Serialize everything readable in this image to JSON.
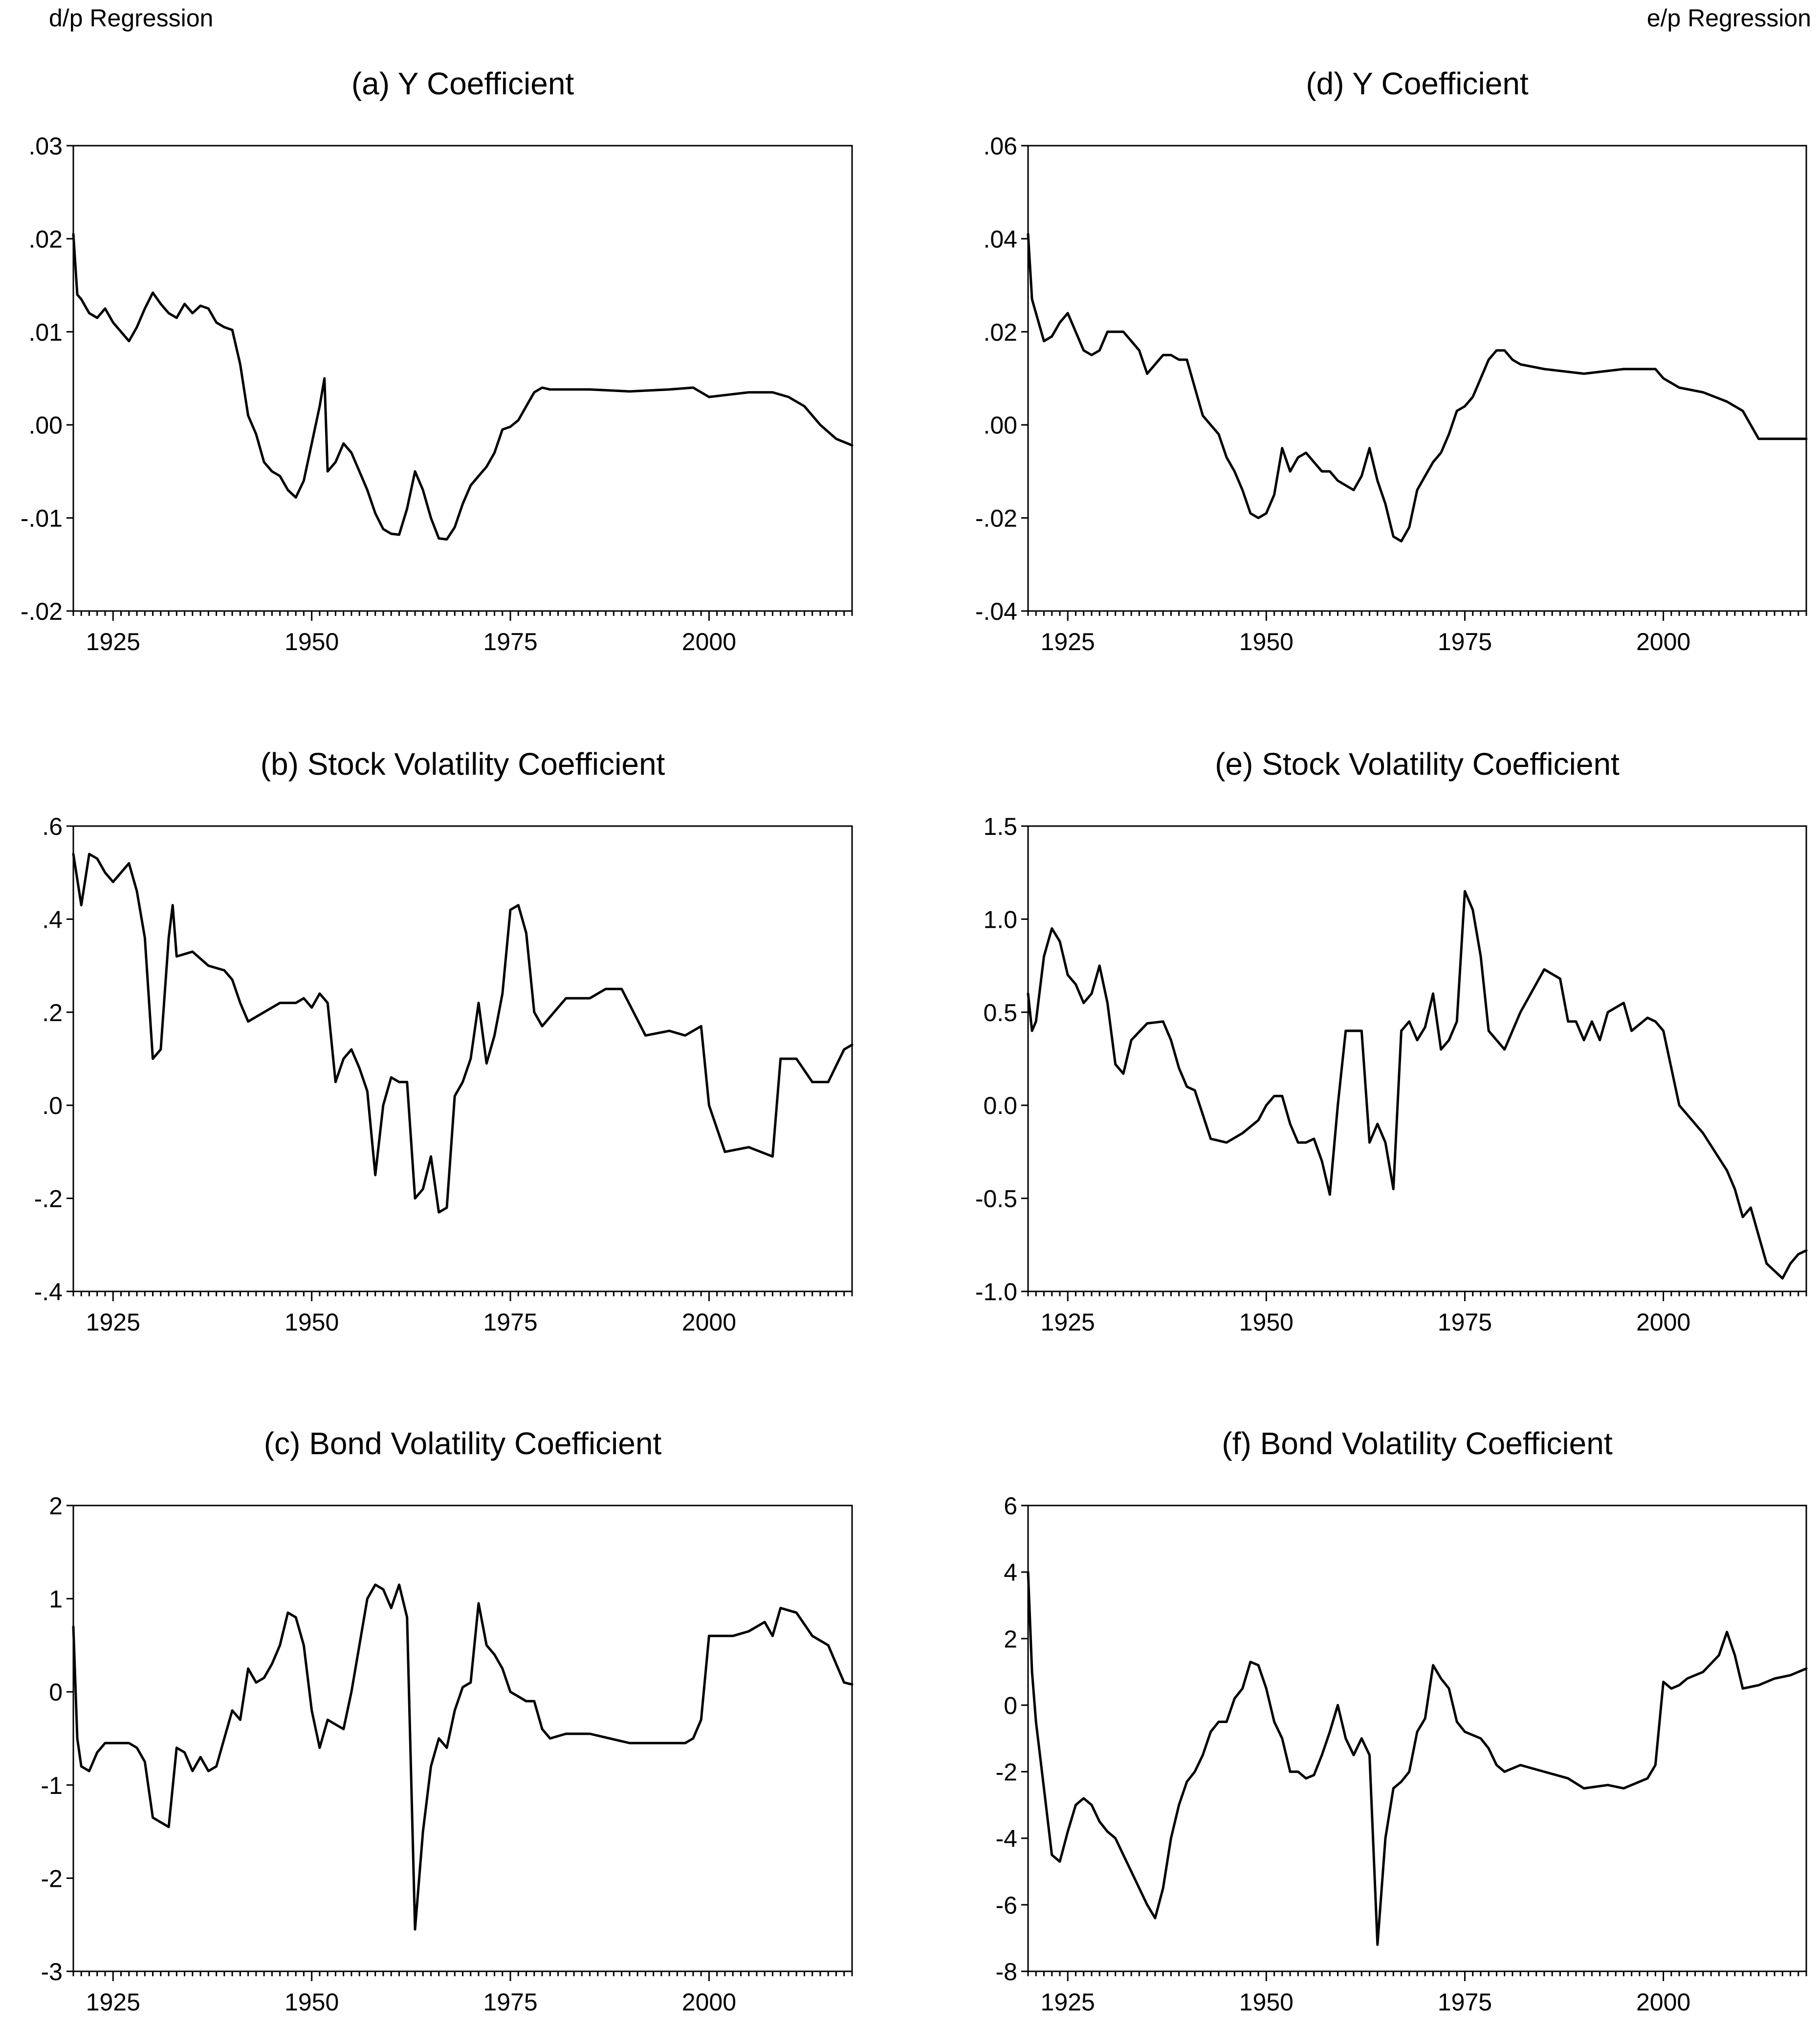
{
  "header": {
    "left": "d/p Regression",
    "right": "e/p Regression"
  },
  "colors": {
    "line": "#000000",
    "frame": "#000000",
    "background": "#ffffff"
  },
  "chart_data": [
    {
      "id": "a",
      "type": "line",
      "title": "(a)  Y  Coefficient",
      "xlabel": "",
      "ylabel": "",
      "xlim": [
        1920,
        2018
      ],
      "ylim": [
        -0.02,
        0.03
      ],
      "yticks": [
        -0.02,
        -0.01,
        0.0,
        0.01,
        0.02,
        0.03
      ],
      "ytick_labels": [
        "-.02",
        "-.01",
        ".00",
        ".01",
        ".02",
        ".03"
      ],
      "xticks": [
        1925,
        1950,
        1975,
        2000
      ],
      "xtick_labels": [
        "1925",
        "1950",
        "1975",
        "2000"
      ],
      "x": [
        1920,
        1920.5,
        1921,
        1922,
        1923,
        1924,
        1925,
        1927,
        1928,
        1929,
        1930,
        1931,
        1932,
        1933,
        1934,
        1935,
        1936,
        1937,
        1938,
        1939,
        1940,
        1941,
        1942,
        1943,
        1944,
        1945,
        1946,
        1947,
        1948,
        1949,
        1950,
        1951,
        1951.6,
        1952,
        1953,
        1954,
        1955,
        1956,
        1957,
        1958,
        1959,
        1960,
        1961,
        1962,
        1963,
        1964,
        1965,
        1966,
        1967,
        1968,
        1969,
        1970,
        1971,
        1972,
        1973,
        1974,
        1975,
        1976,
        1977,
        1978,
        1979,
        1980,
        1985,
        1990,
        1995,
        1998,
        2000,
        2002,
        2005,
        2008,
        2010,
        2012,
        2014,
        2016,
        2018
      ],
      "y": [
        0.0205,
        0.014,
        0.0135,
        0.012,
        0.0115,
        0.0125,
        0.011,
        0.009,
        0.0105,
        0.0125,
        0.0142,
        0.013,
        0.012,
        0.0115,
        0.013,
        0.012,
        0.0128,
        0.0125,
        0.011,
        0.0105,
        0.0102,
        0.0065,
        0.001,
        -0.001,
        -0.004,
        -0.005,
        -0.0055,
        -0.007,
        -0.0078,
        -0.006,
        -0.002,
        0.002,
        0.005,
        -0.005,
        -0.004,
        -0.002,
        -0.003,
        -0.005,
        -0.007,
        -0.0095,
        -0.0112,
        -0.0117,
        -0.0118,
        -0.009,
        -0.005,
        -0.007,
        -0.01,
        -0.0122,
        -0.0123,
        -0.011,
        -0.0085,
        -0.0065,
        -0.0055,
        -0.0045,
        -0.003,
        -0.0005,
        -0.0002,
        0.0005,
        0.002,
        0.0035,
        0.004,
        0.0038,
        0.0038,
        0.0036,
        0.0038,
        0.004,
        0.003,
        0.0032,
        0.0035,
        0.0035,
        0.003,
        0.002,
        0.0,
        -0.0015,
        -0.0022
      ]
    },
    {
      "id": "b",
      "type": "line",
      "title": "(b)  Stock  Volatility  Coefficient",
      "xlabel": "",
      "ylabel": "",
      "xlim": [
        1920,
        2018
      ],
      "ylim": [
        -0.4,
        0.6
      ],
      "yticks": [
        -0.4,
        -0.2,
        0.0,
        0.2,
        0.4,
        0.6
      ],
      "ytick_labels": [
        "-.4",
        "-.2",
        ".0",
        ".2",
        ".4",
        ".6"
      ],
      "xticks": [
        1925,
        1950,
        1975,
        2000
      ],
      "xtick_labels": [
        "1925",
        "1950",
        "1975",
        "2000"
      ],
      "x": [
        1920,
        1921,
        1922,
        1923,
        1924,
        1925,
        1926,
        1927,
        1928,
        1929,
        1930,
        1931,
        1932,
        1932.5,
        1933,
        1935,
        1937,
        1939,
        1940,
        1941,
        1942,
        1944,
        1946,
        1948,
        1949,
        1950,
        1951,
        1952,
        1953,
        1954,
        1955,
        1956,
        1957,
        1958,
        1959,
        1960,
        1961,
        1962,
        1963,
        1964,
        1965,
        1966,
        1967,
        1968,
        1969,
        1970,
        1971,
        1972,
        1973,
        1974,
        1975,
        1976,
        1977,
        1978,
        1979,
        1980,
        1982,
        1985,
        1987,
        1989,
        1992,
        1995,
        1997,
        1999,
        2000,
        2002,
        2005,
        2008,
        2009,
        2011,
        2013,
        2015,
        2017,
        2018
      ],
      "y": [
        0.54,
        0.43,
        0.54,
        0.53,
        0.5,
        0.48,
        0.5,
        0.52,
        0.46,
        0.36,
        0.1,
        0.12,
        0.36,
        0.43,
        0.32,
        0.33,
        0.3,
        0.29,
        0.27,
        0.22,
        0.18,
        0.2,
        0.22,
        0.22,
        0.23,
        0.21,
        0.24,
        0.22,
        0.05,
        0.1,
        0.12,
        0.08,
        0.03,
        -0.15,
        0.0,
        0.06,
        0.05,
        0.05,
        -0.2,
        -0.18,
        -0.11,
        -0.23,
        -0.22,
        0.02,
        0.05,
        0.1,
        0.22,
        0.09,
        0.15,
        0.24,
        0.42,
        0.43,
        0.37,
        0.2,
        0.17,
        0.19,
        0.23,
        0.23,
        0.25,
        0.25,
        0.15,
        0.16,
        0.15,
        0.17,
        0.0,
        -0.1,
        -0.09,
        -0.11,
        0.1,
        0.1,
        0.05,
        0.05,
        0.12,
        0.13
      ]
    },
    {
      "id": "c",
      "type": "line",
      "title": "(c)  Bond  Volatility  Coefficient",
      "xlabel": "",
      "ylabel": "",
      "xlim": [
        1920,
        2018
      ],
      "ylim": [
        -3,
        2
      ],
      "yticks": [
        -3,
        -2,
        -1,
        0,
        1,
        2
      ],
      "ytick_labels": [
        "-3",
        "-2",
        "-1",
        "0",
        "1",
        "2"
      ],
      "xticks": [
        1925,
        1950,
        1975,
        2000
      ],
      "xtick_labels": [
        "1925",
        "1950",
        "1975",
        "2000"
      ],
      "x": [
        1920,
        1920.5,
        1921,
        1922,
        1923,
        1924,
        1925,
        1927,
        1928,
        1929,
        1930,
        1931,
        1932,
        1933,
        1934,
        1935,
        1936,
        1937,
        1938,
        1939,
        1940,
        1941,
        1942,
        1943,
        1944,
        1945,
        1946,
        1947,
        1948,
        1949,
        1950,
        1951,
        1952,
        1953,
        1954,
        1955,
        1956,
        1957,
        1958,
        1959,
        1960,
        1961,
        1962,
        1963,
        1964,
        1965,
        1966,
        1967,
        1968,
        1969,
        1970,
        1971,
        1972,
        1973,
        1974,
        1975,
        1976,
        1977,
        1978,
        1979,
        1980,
        1982,
        1985,
        1990,
        1995,
        1997,
        1998,
        1999,
        2000,
        2003,
        2005,
        2007,
        2008,
        2009,
        2011,
        2013,
        2015,
        2017,
        2018
      ],
      "y": [
        0.7,
        -0.5,
        -0.8,
        -0.85,
        -0.65,
        -0.55,
        -0.55,
        -0.55,
        -0.6,
        -0.75,
        -1.35,
        -1.4,
        -1.45,
        -0.6,
        -0.65,
        -0.85,
        -0.7,
        -0.85,
        -0.8,
        -0.5,
        -0.2,
        -0.3,
        0.25,
        0.1,
        0.15,
        0.3,
        0.5,
        0.85,
        0.8,
        0.5,
        -0.2,
        -0.6,
        -0.3,
        -0.35,
        -0.4,
        0.0,
        0.5,
        1.0,
        1.15,
        1.1,
        0.9,
        1.15,
        0.8,
        -2.55,
        -1.5,
        -0.8,
        -0.5,
        -0.6,
        -0.2,
        0.05,
        0.1,
        0.95,
        0.5,
        0.4,
        0.25,
        0.0,
        -0.05,
        -0.1,
        -0.1,
        -0.4,
        -0.5,
        -0.45,
        -0.45,
        -0.55,
        -0.55,
        -0.55,
        -0.5,
        -0.3,
        0.6,
        0.6,
        0.65,
        0.75,
        0.6,
        0.9,
        0.85,
        0.6,
        0.5,
        0.1,
        0.08
      ]
    },
    {
      "id": "d",
      "type": "line",
      "title": "(d)  Y  Coefficient",
      "xlabel": "",
      "ylabel": "",
      "xlim": [
        1920,
        2018
      ],
      "ylim": [
        -0.04,
        0.06
      ],
      "yticks": [
        -0.04,
        -0.02,
        0.0,
        0.02,
        0.04,
        0.06
      ],
      "ytick_labels": [
        "-.04",
        "-.02",
        ".00",
        ".02",
        ".04",
        ".06"
      ],
      "xticks": [
        1925,
        1950,
        1975,
        2000
      ],
      "xtick_labels": [
        "1925",
        "1950",
        "1975",
        "2000"
      ],
      "x": [
        1920,
        1920.5,
        1921,
        1922,
        1923,
        1924,
        1925,
        1927,
        1928,
        1929,
        1930,
        1931,
        1932,
        1933,
        1934,
        1935,
        1936,
        1937,
        1938,
        1939,
        1940,
        1941,
        1942,
        1943,
        1944,
        1945,
        1946,
        1947,
        1948,
        1949,
        1950,
        1951,
        1952,
        1953,
        1954,
        1955,
        1956,
        1957,
        1958,
        1959,
        1960,
        1961,
        1962,
        1963,
        1964,
        1965,
        1966,
        1967,
        1968,
        1969,
        1970,
        1971,
        1972,
        1973,
        1974,
        1975,
        1976,
        1977,
        1978,
        1979,
        1980,
        1981,
        1982,
        1985,
        1990,
        1995,
        1998,
        1999,
        2000,
        2002,
        2005,
        2008,
        2010,
        2012,
        2013,
        2015,
        2018
      ],
      "y": [
        0.041,
        0.027,
        0.024,
        0.018,
        0.019,
        0.022,
        0.024,
        0.016,
        0.015,
        0.016,
        0.02,
        0.02,
        0.02,
        0.018,
        0.016,
        0.011,
        0.013,
        0.015,
        0.015,
        0.014,
        0.014,
        0.008,
        0.002,
        0.0,
        -0.002,
        -0.007,
        -0.01,
        -0.014,
        -0.019,
        -0.02,
        -0.019,
        -0.015,
        -0.005,
        -0.01,
        -0.007,
        -0.006,
        -0.008,
        -0.01,
        -0.01,
        -0.012,
        -0.013,
        -0.014,
        -0.011,
        -0.005,
        -0.012,
        -0.017,
        -0.024,
        -0.025,
        -0.022,
        -0.014,
        -0.011,
        -0.008,
        -0.006,
        -0.002,
        0.003,
        0.004,
        0.006,
        0.01,
        0.014,
        0.016,
        0.016,
        0.014,
        0.013,
        0.012,
        0.011,
        0.012,
        0.012,
        0.012,
        0.01,
        0.008,
        0.007,
        0.005,
        0.003,
        -0.003,
        -0.003,
        -0.003,
        -0.003
      ]
    },
    {
      "id": "e",
      "type": "line",
      "title": "(e)  Stock  Volatility  Coefficient",
      "xlabel": "",
      "ylabel": "",
      "xlim": [
        1920,
        2018
      ],
      "ylim": [
        -1.0,
        1.5
      ],
      "yticks": [
        -1.0,
        -0.5,
        0.0,
        0.5,
        1.0,
        1.5
      ],
      "ytick_labels": [
        "-1.0",
        "-0.5",
        "0.0",
        "0.5",
        "1.0",
        "1.5"
      ],
      "xticks": [
        1925,
        1950,
        1975,
        2000
      ],
      "xtick_labels": [
        "1925",
        "1950",
        "1975",
        "2000"
      ],
      "x": [
        1920,
        1920.5,
        1921,
        1922,
        1923,
        1924,
        1925,
        1926,
        1927,
        1928,
        1929,
        1930,
        1931,
        1932,
        1933,
        1935,
        1937,
        1938,
        1939,
        1940,
        1941,
        1942,
        1943,
        1945,
        1947,
        1949,
        1950,
        1951,
        1952,
        1953,
        1954,
        1955,
        1956,
        1957,
        1958,
        1959,
        1960,
        1961,
        1962,
        1963,
        1964,
        1965,
        1966,
        1967,
        1968,
        1969,
        1970,
        1971,
        1972,
        1973,
        1974,
        1975,
        1976,
        1977,
        1978,
        1979,
        1980,
        1982,
        1985,
        1987,
        1988,
        1989,
        1990,
        1991,
        1992,
        1993,
        1995,
        1996,
        1998,
        1999,
        2000,
        2002,
        2005,
        2008,
        2009,
        2010,
        2011,
        2012,
        2013,
        2015,
        2016,
        2017,
        2018
      ],
      "y": [
        0.6,
        0.4,
        0.45,
        0.8,
        0.95,
        0.88,
        0.7,
        0.65,
        0.55,
        0.6,
        0.75,
        0.55,
        0.22,
        0.17,
        0.35,
        0.44,
        0.45,
        0.35,
        0.2,
        0.1,
        0.08,
        -0.05,
        -0.18,
        -0.2,
        -0.15,
        -0.08,
        0.0,
        0.05,
        0.05,
        -0.1,
        -0.2,
        -0.2,
        -0.18,
        -0.3,
        -0.48,
        0.0,
        0.4,
        0.4,
        0.4,
        -0.2,
        -0.1,
        -0.2,
        -0.45,
        0.4,
        0.45,
        0.35,
        0.42,
        0.6,
        0.3,
        0.35,
        0.45,
        1.15,
        1.05,
        0.8,
        0.4,
        0.35,
        0.3,
        0.5,
        0.73,
        0.68,
        0.45,
        0.45,
        0.35,
        0.45,
        0.35,
        0.5,
        0.55,
        0.4,
        0.47,
        0.45,
        0.4,
        0.0,
        -0.15,
        -0.35,
        -0.45,
        -0.6,
        -0.55,
        -0.7,
        -0.85,
        -0.93,
        -0.85,
        -0.8,
        -0.78
      ]
    },
    {
      "id": "f",
      "type": "line",
      "title": "(f)  Bond  Volatility  Coefficient",
      "xlabel": "",
      "ylabel": "",
      "xlim": [
        1920,
        2018
      ],
      "ylim": [
        -8,
        6
      ],
      "yticks": [
        -8,
        -6,
        -4,
        -2,
        0,
        2,
        4,
        6
      ],
      "ytick_labels": [
        "-8",
        "-6",
        "-4",
        "-2",
        "0",
        "2",
        "4",
        "6"
      ],
      "xticks": [
        1925,
        1950,
        1975,
        2000
      ],
      "xtick_labels": [
        "1925",
        "1950",
        "1975",
        "2000"
      ],
      "x": [
        1920,
        1920.5,
        1921,
        1922,
        1923,
        1924,
        1925,
        1926,
        1927,
        1928,
        1929,
        1930,
        1931,
        1932,
        1933,
        1934,
        1935,
        1936,
        1937,
        1938,
        1939,
        1940,
        1941,
        1942,
        1943,
        1944,
        1945,
        1946,
        1947,
        1948,
        1949,
        1950,
        1951,
        1952,
        1953,
        1954,
        1955,
        1956,
        1957,
        1958,
        1959,
        1960,
        1961,
        1962,
        1963,
        1964,
        1965,
        1966,
        1967,
        1968,
        1969,
        1970,
        1971,
        1972,
        1973,
        1974,
        1975,
        1976,
        1977,
        1978,
        1979,
        1980,
        1982,
        1985,
        1988,
        1990,
        1993,
        1995,
        1998,
        1999,
        2000,
        2001,
        2002,
        2003,
        2005,
        2007,
        2008,
        2009,
        2010,
        2012,
        2014,
        2016,
        2018
      ],
      "y": [
        4.0,
        1.0,
        -0.5,
        -2.5,
        -4.5,
        -4.7,
        -3.8,
        -3.0,
        -2.8,
        -3.0,
        -3.5,
        -3.8,
        -4.0,
        -4.5,
        -5.0,
        -5.5,
        -6.0,
        -6.4,
        -5.5,
        -4.0,
        -3.0,
        -2.3,
        -2.0,
        -1.5,
        -0.8,
        -0.5,
        -0.5,
        0.2,
        0.5,
        1.3,
        1.2,
        0.5,
        -0.5,
        -1.0,
        -2.0,
        -2.0,
        -2.2,
        -2.1,
        -1.5,
        -0.8,
        0.0,
        -1.0,
        -1.5,
        -1.0,
        -1.5,
        -7.2,
        -4.0,
        -2.5,
        -2.3,
        -2.0,
        -0.8,
        -0.4,
        1.2,
        0.8,
        0.5,
        -0.5,
        -0.8,
        -0.9,
        -1.0,
        -1.3,
        -1.8,
        -2.0,
        -1.8,
        -2.0,
        -2.2,
        -2.5,
        -2.4,
        -2.5,
        -2.2,
        -1.8,
        0.7,
        0.5,
        0.6,
        0.8,
        1.0,
        1.5,
        2.2,
        1.5,
        0.5,
        0.6,
        0.8,
        0.9,
        1.1
      ]
    }
  ]
}
